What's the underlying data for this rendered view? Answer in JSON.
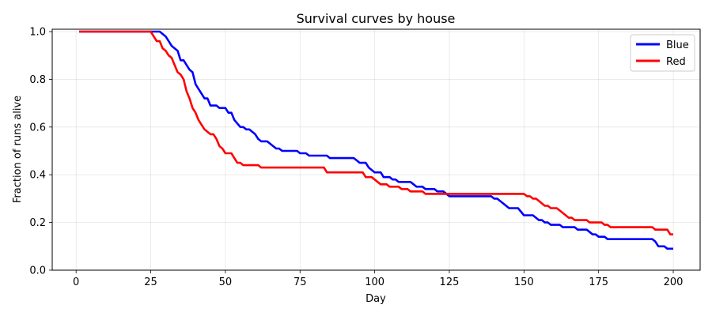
{
  "chart_data": {
    "type": "line",
    "title": "Survival curves by house",
    "xlabel": "Day",
    "ylabel": "Fraction of runs alive",
    "xlim": [
      -8,
      209
    ],
    "ylim": [
      0.0,
      1.01
    ],
    "xticks": [
      0,
      25,
      50,
      75,
      100,
      125,
      150,
      175,
      200
    ],
    "yticks": [
      0.0,
      0.2,
      0.4,
      0.6,
      0.8,
      1.0
    ],
    "ytick_labels": [
      "0.0",
      "0.2",
      "0.4",
      "0.6",
      "0.8",
      "1.0"
    ],
    "grid": true,
    "legend_position": "top-right",
    "series": [
      {
        "name": "Blue",
        "color": "#0000ff",
        "points": [
          [
            1,
            1.0
          ],
          [
            28,
            1.0
          ],
          [
            30,
            0.98
          ],
          [
            31,
            0.96
          ],
          [
            32,
            0.94
          ],
          [
            34,
            0.92
          ],
          [
            35,
            0.88
          ],
          [
            36,
            0.88
          ],
          [
            38,
            0.84
          ],
          [
            39,
            0.83
          ],
          [
            40,
            0.78
          ],
          [
            41,
            0.76
          ],
          [
            42,
            0.74
          ],
          [
            43,
            0.72
          ],
          [
            44,
            0.72
          ],
          [
            45,
            0.69
          ],
          [
            47,
            0.69
          ],
          [
            48,
            0.68
          ],
          [
            50,
            0.68
          ],
          [
            51,
            0.66
          ],
          [
            52,
            0.66
          ],
          [
            53,
            0.63
          ],
          [
            55,
            0.6
          ],
          [
            56,
            0.6
          ],
          [
            57,
            0.59
          ],
          [
            58,
            0.59
          ],
          [
            59,
            0.58
          ],
          [
            60,
            0.57
          ],
          [
            61,
            0.55
          ],
          [
            62,
            0.54
          ],
          [
            64,
            0.54
          ],
          [
            66,
            0.52
          ],
          [
            67,
            0.51
          ],
          [
            68,
            0.51
          ],
          [
            69,
            0.5
          ],
          [
            74,
            0.5
          ],
          [
            75,
            0.49
          ],
          [
            77,
            0.49
          ],
          [
            78,
            0.48
          ],
          [
            84,
            0.48
          ],
          [
            85,
            0.47
          ],
          [
            93,
            0.47
          ],
          [
            94,
            0.46
          ],
          [
            95,
            0.45
          ],
          [
            97,
            0.45
          ],
          [
            98,
            0.43
          ],
          [
            100,
            0.41
          ],
          [
            102,
            0.41
          ],
          [
            103,
            0.39
          ],
          [
            105,
            0.39
          ],
          [
            106,
            0.38
          ],
          [
            107,
            0.38
          ],
          [
            108,
            0.37
          ],
          [
            112,
            0.37
          ],
          [
            114,
            0.35
          ],
          [
            116,
            0.35
          ],
          [
            117,
            0.34
          ],
          [
            120,
            0.34
          ],
          [
            121,
            0.33
          ],
          [
            123,
            0.33
          ],
          [
            125,
            0.31
          ],
          [
            139,
            0.31
          ],
          [
            140,
            0.3
          ],
          [
            141,
            0.3
          ],
          [
            145,
            0.26
          ],
          [
            148,
            0.26
          ],
          [
            150,
            0.23
          ],
          [
            153,
            0.23
          ],
          [
            155,
            0.21
          ],
          [
            156,
            0.21
          ],
          [
            157,
            0.2
          ],
          [
            158,
            0.2
          ],
          [
            159,
            0.19
          ],
          [
            162,
            0.19
          ],
          [
            163,
            0.18
          ],
          [
            167,
            0.18
          ],
          [
            168,
            0.17
          ],
          [
            171,
            0.17
          ],
          [
            173,
            0.15
          ],
          [
            174,
            0.15
          ],
          [
            175,
            0.14
          ],
          [
            177,
            0.14
          ],
          [
            178,
            0.13
          ],
          [
            193,
            0.13
          ],
          [
            194,
            0.12
          ],
          [
            195,
            0.1
          ],
          [
            197,
            0.1
          ],
          [
            198,
            0.09
          ],
          [
            200,
            0.09
          ]
        ]
      },
      {
        "name": "Red",
        "color": "#ff0000",
        "points": [
          [
            1,
            1.0
          ],
          [
            25,
            1.0
          ],
          [
            26,
            0.98
          ],
          [
            27,
            0.96
          ],
          [
            28,
            0.96
          ],
          [
            29,
            0.93
          ],
          [
            30,
            0.92
          ],
          [
            31,
            0.9
          ],
          [
            32,
            0.89
          ],
          [
            33,
            0.86
          ],
          [
            34,
            0.83
          ],
          [
            35,
            0.82
          ],
          [
            36,
            0.8
          ],
          [
            37,
            0.75
          ],
          [
            38,
            0.72
          ],
          [
            39,
            0.68
          ],
          [
            40,
            0.66
          ],
          [
            41,
            0.63
          ],
          [
            42,
            0.61
          ],
          [
            43,
            0.59
          ],
          [
            44,
            0.58
          ],
          [
            45,
            0.57
          ],
          [
            46,
            0.57
          ],
          [
            47,
            0.55
          ],
          [
            48,
            0.52
          ],
          [
            49,
            0.51
          ],
          [
            50,
            0.49
          ],
          [
            52,
            0.49
          ],
          [
            53,
            0.47
          ],
          [
            54,
            0.45
          ],
          [
            55,
            0.45
          ],
          [
            56,
            0.44
          ],
          [
            61,
            0.44
          ],
          [
            62,
            0.43
          ],
          [
            83,
            0.43
          ],
          [
            84,
            0.41
          ],
          [
            96,
            0.41
          ],
          [
            97,
            0.39
          ],
          [
            99,
            0.39
          ],
          [
            101,
            0.37
          ],
          [
            102,
            0.36
          ],
          [
            104,
            0.36
          ],
          [
            105,
            0.35
          ],
          [
            108,
            0.35
          ],
          [
            109,
            0.34
          ],
          [
            111,
            0.34
          ],
          [
            112,
            0.33
          ],
          [
            116,
            0.33
          ],
          [
            117,
            0.32
          ],
          [
            150,
            0.32
          ],
          [
            151,
            0.31
          ],
          [
            152,
            0.31
          ],
          [
            153,
            0.3
          ],
          [
            154,
            0.3
          ],
          [
            155,
            0.29
          ],
          [
            157,
            0.27
          ],
          [
            158,
            0.27
          ],
          [
            159,
            0.26
          ],
          [
            161,
            0.26
          ],
          [
            162,
            0.25
          ],
          [
            165,
            0.22
          ],
          [
            166,
            0.22
          ],
          [
            167,
            0.21
          ],
          [
            171,
            0.21
          ],
          [
            172,
            0.2
          ],
          [
            176,
            0.2
          ],
          [
            177,
            0.19
          ],
          [
            178,
            0.19
          ],
          [
            179,
            0.18
          ],
          [
            193,
            0.18
          ],
          [
            194,
            0.17
          ],
          [
            198,
            0.17
          ],
          [
            199,
            0.15
          ],
          [
            200,
            0.15
          ]
        ]
      }
    ]
  }
}
